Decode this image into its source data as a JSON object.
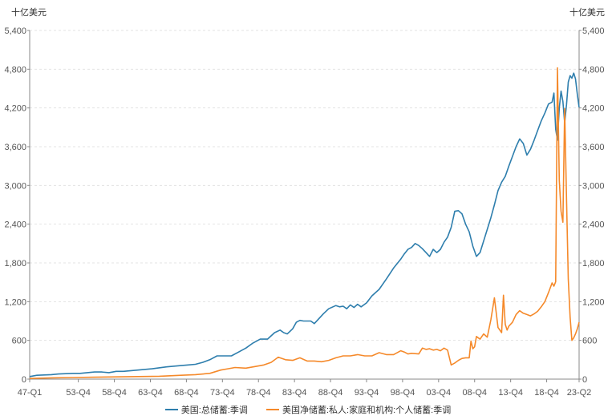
{
  "chart_data": {
    "type": "line",
    "unit_label_left": "十亿美元",
    "unit_label_right": "十亿美元",
    "ylim": [
      0,
      5400
    ],
    "yticks": [
      0,
      600,
      1200,
      1800,
      2400,
      3000,
      3600,
      4200,
      4800,
      5400
    ],
    "ytick_labels": [
      "0",
      "600",
      "1,200",
      "1,800",
      "2,400",
      "3,000",
      "3,600",
      "4,200",
      "4,800",
      "5,400"
    ],
    "xlim": [
      1947.0,
      2023.25
    ],
    "xticks": [
      1947.0,
      1953.75,
      1958.75,
      1963.75,
      1968.75,
      1973.75,
      1978.75,
      1983.75,
      1988.75,
      1993.75,
      1998.75,
      2003.75,
      2008.75,
      2013.75,
      2018.75,
      2023.25
    ],
    "xtick_labels": [
      "47-Q1",
      "53-Q4",
      "58-Q4",
      "63-Q4",
      "68-Q4",
      "73-Q4",
      "78-Q4",
      "83-Q4",
      "88-Q4",
      "93-Q4",
      "98-Q4",
      "03-Q4",
      "08-Q4",
      "13-Q4",
      "18-Q4",
      "23-Q2"
    ],
    "grid": true,
    "legend_position": "bottom",
    "series": [
      {
        "name": "美国:总储蓄:季调",
        "color": "#2e7ead",
        "x": [
          1947.0,
          1948.0,
          1950.0,
          1951.0,
          1952.0,
          1953.0,
          1954.0,
          1955.0,
          1956.0,
          1957.0,
          1958.0,
          1959.0,
          1960.0,
          1962.0,
          1964.0,
          1966.0,
          1968.0,
          1969.0,
          1970.0,
          1971.0,
          1972.0,
          1973.0,
          1974.0,
          1975.0,
          1976.0,
          1977.0,
          1978.0,
          1979.0,
          1980.0,
          1981.0,
          1981.75,
          1982.25,
          1982.75,
          1983.5,
          1984.0,
          1984.5,
          1985.0,
          1986.0,
          1986.5,
          1987.0,
          1987.75,
          1988.5,
          1989.5,
          1990.0,
          1990.5,
          1991.0,
          1991.5,
          1992.0,
          1992.5,
          1993.0,
          1993.75,
          1994.5,
          1995.5,
          1996.5,
          1997.5,
          1998.5,
          1999.0,
          1999.5,
          2000.0,
          2000.5,
          2001.0,
          2001.5,
          2002.0,
          2002.5,
          2003.0,
          2003.5,
          2004.0,
          2004.5,
          2005.0,
          2005.5,
          2006.0,
          2006.5,
          2007.0,
          2007.5,
          2008.0,
          2008.5,
          2009.0,
          2009.5,
          2010.0,
          2010.5,
          2011.0,
          2011.5,
          2012.0,
          2012.5,
          2013.0,
          2013.5,
          2014.0,
          2014.5,
          2015.0,
          2015.5,
          2016.0,
          2016.5,
          2017.0,
          2017.5,
          2018.0,
          2018.5,
          2019.0,
          2019.5,
          2019.75,
          2020.0,
          2020.25,
          2020.5,
          2020.75,
          2021.0,
          2021.25,
          2021.5,
          2021.75,
          2022.0,
          2022.25,
          2022.5,
          2022.75,
          2023.0,
          2023.25
        ],
        "y": [
          40,
          60,
          70,
          80,
          85,
          90,
          90,
          100,
          110,
          110,
          100,
          120,
          120,
          140,
          160,
          190,
          210,
          220,
          230,
          260,
          300,
          360,
          360,
          360,
          420,
          480,
          560,
          620,
          620,
          720,
          760,
          720,
          700,
          780,
          880,
          910,
          900,
          900,
          860,
          920,
          1010,
          1090,
          1140,
          1120,
          1130,
          1090,
          1150,
          1110,
          1160,
          1120,
          1180,
          1290,
          1390,
          1550,
          1720,
          1860,
          1940,
          2010,
          2040,
          2100,
          2070,
          2020,
          1960,
          1900,
          2010,
          1960,
          2010,
          2120,
          2200,
          2350,
          2600,
          2610,
          2560,
          2400,
          2280,
          2060,
          1900,
          1960,
          2140,
          2320,
          2500,
          2700,
          2920,
          3050,
          3140,
          3300,
          3450,
          3600,
          3720,
          3650,
          3470,
          3560,
          3700,
          3850,
          4000,
          4120,
          4260,
          4290,
          4430,
          3870,
          3700,
          4200,
          4460,
          4300,
          3970,
          4250,
          4600,
          4700,
          4660,
          4740,
          4650,
          4410,
          4210
        ]
      },
      {
        "name": "美国净储蓄:私人:家庭和机构:个人储蓄:季调",
        "color": "#f5892a",
        "x": [
          1947.0,
          1950.0,
          1953.0,
          1956.0,
          1959.0,
          1962.0,
          1965.0,
          1968.0,
          1970.0,
          1972.0,
          1973.5,
          1974.5,
          1975.5,
          1977.0,
          1978.5,
          1979.5,
          1980.5,
          1981.5,
          1982.5,
          1983.5,
          1984.5,
          1985.5,
          1986.5,
          1987.5,
          1988.5,
          1989.5,
          1990.5,
          1991.5,
          1992.5,
          1993.5,
          1994.5,
          1995.5,
          1996.5,
          1997.5,
          1998.5,
          1999.0,
          1999.5,
          2000.0,
          2001.0,
          2001.5,
          2002.0,
          2002.5,
          2003.0,
          2003.5,
          2004.0,
          2004.5,
          2005.0,
          2005.5,
          2006.0,
          2006.5,
          2007.0,
          2007.5,
          2008.0,
          2008.25,
          2008.5,
          2008.75,
          2009.0,
          2009.5,
          2010.0,
          2010.5,
          2011.0,
          2011.5,
          2012.0,
          2012.5,
          2012.75,
          2013.0,
          2013.25,
          2013.5,
          2014.0,
          2014.5,
          2015.0,
          2015.5,
          2016.0,
          2016.5,
          2017.0,
          2017.5,
          2018.0,
          2018.5,
          2019.0,
          2019.5,
          2019.75,
          2020.0,
          2020.25,
          2020.5,
          2020.75,
          2021.0,
          2021.25,
          2021.5,
          2021.75,
          2022.0,
          2022.25,
          2022.5,
          2022.75,
          2023.0,
          2023.25
        ],
        "y": [
          10,
          20,
          25,
          30,
          35,
          40,
          45,
          60,
          70,
          90,
          140,
          160,
          180,
          170,
          200,
          220,
          260,
          340,
          300,
          290,
          330,
          280,
          280,
          270,
          290,
          330,
          360,
          360,
          380,
          360,
          360,
          410,
          380,
          380,
          440,
          420,
          390,
          400,
          390,
          480,
          460,
          470,
          450,
          460,
          440,
          480,
          450,
          220,
          250,
          290,
          320,
          330,
          330,
          590,
          470,
          500,
          660,
          620,
          700,
          650,
          920,
          1260,
          800,
          720,
          1300,
          850,
          760,
          820,
          880,
          1000,
          1060,
          1020,
          1000,
          980,
          1010,
          1050,
          1120,
          1200,
          1340,
          1490,
          1440,
          1510,
          4820,
          3080,
          2600,
          2430,
          4190,
          2800,
          1550,
          960,
          600,
          640,
          700,
          780,
          880
        ]
      }
    ]
  }
}
